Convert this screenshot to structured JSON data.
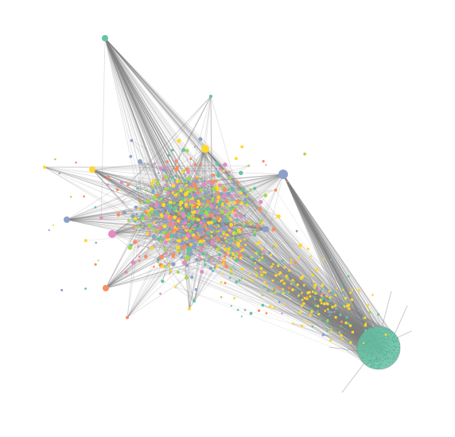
{
  "figure": {
    "type": "network-graph",
    "background": "#ffffff",
    "edge_color": "#808080",
    "node_palette": {
      "teal": "#66c2a5",
      "orange": "#fc8d62",
      "blue": "#8da0cb",
      "pink": "#e78ac3",
      "green": "#a6d854",
      "yellow": "#ffd92f"
    },
    "clusters": [
      {
        "name": "central-hairball",
        "dominant_colors": [
          "orange",
          "pink",
          "green",
          "yellow",
          "blue",
          "teal"
        ]
      },
      {
        "name": "dense-teal-cluster",
        "dominant_colors": [
          "teal"
        ]
      }
    ]
  }
}
